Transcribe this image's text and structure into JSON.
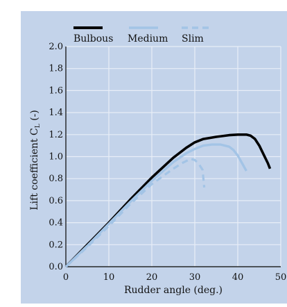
{
  "chart_data": {
    "type": "line",
    "title": "",
    "xlabel": "Rudder angle (deg.)",
    "ylabel": "Lift coefficient C",
    "ylabel_subscript": "L",
    "ylabel_suffix": " (-)",
    "xlim": [
      0,
      50
    ],
    "ylim": [
      0,
      2.0
    ],
    "xticks": [
      0,
      10,
      20,
      30,
      40,
      50
    ],
    "yticks": [
      "0.0",
      "0.2",
      "0.4",
      "0.6",
      "0.8",
      "1.0",
      "1.2",
      "1.4",
      "1.6",
      "1.8",
      "2.0"
    ],
    "grid": true,
    "legend_position": "top",
    "background_color": "#c3d3ea",
    "grid_color": "#e8eef7",
    "series": [
      {
        "name": "Bulbous",
        "color": "#000000",
        "style": "solid",
        "x": [
          0,
          5,
          10,
          15,
          20,
          25,
          28,
          30,
          32,
          35,
          38,
          40,
          42,
          43,
          44,
          45,
          46,
          47,
          47.5
        ],
        "y": [
          0,
          0.2,
          0.4,
          0.61,
          0.81,
          0.99,
          1.08,
          1.13,
          1.16,
          1.18,
          1.195,
          1.2,
          1.2,
          1.19,
          1.16,
          1.1,
          1.02,
          0.94,
          0.89
        ]
      },
      {
        "name": "Medium",
        "color": "#a3c4e6",
        "style": "solid",
        "x": [
          0,
          5,
          10,
          15,
          20,
          25,
          28,
          30,
          32,
          34,
          36,
          38,
          39,
          40,
          41,
          42
        ],
        "y": [
          0,
          0.19,
          0.39,
          0.59,
          0.78,
          0.95,
          1.03,
          1.07,
          1.1,
          1.11,
          1.11,
          1.09,
          1.06,
          1.01,
          0.94,
          0.87
        ]
      },
      {
        "name": "Slim",
        "color": "#a3c4e6",
        "style": "dashed",
        "x": [
          0,
          5,
          10,
          15,
          20,
          25,
          27,
          29,
          30,
          31,
          31.8,
          32,
          32.2
        ],
        "y": [
          0,
          0.18,
          0.37,
          0.57,
          0.75,
          0.89,
          0.94,
          0.98,
          0.97,
          0.93,
          0.88,
          0.8,
          0.72
        ]
      }
    ]
  }
}
